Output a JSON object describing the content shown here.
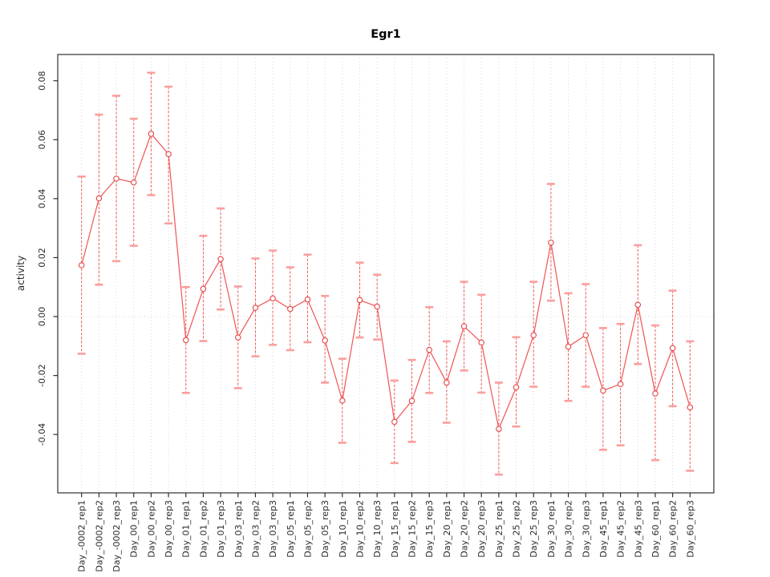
{
  "chart_data": {
    "type": "line",
    "title": "Egr1",
    "xlabel": "",
    "ylabel": "activity",
    "legend": "none",
    "grid": {
      "vertical": "dotted line at each category",
      "horizontal": "dotted line at y=0 only"
    },
    "error_bars": true,
    "marker": "open-circle",
    "categories": [
      "Day_-0002_rep1",
      "Day_-0002_rep2",
      "Day_-0002_rep3",
      "Day_00_rep1",
      "Day_00_rep2",
      "Day_00_rep3",
      "Day_01_rep1",
      "Day_01_rep2",
      "Day_01_rep3",
      "Day_03_rep1",
      "Day_03_rep2",
      "Day_03_rep3",
      "Day_05_rep1",
      "Day_05_rep2",
      "Day_05_rep3",
      "Day_10_rep1",
      "Day_10_rep2",
      "Day_10_rep3",
      "Day_15_rep1",
      "Day_15_rep2",
      "Day_15_rep3",
      "Day_20_rep1",
      "Day_20_rep2",
      "Day_20_rep3",
      "Day_25_rep1",
      "Day_25_rep2",
      "Day_25_rep3",
      "Day_30_rep1",
      "Day_30_rep2",
      "Day_30_rep3",
      "Day_45_rep1",
      "Day_45_rep2",
      "Day_45_rep3",
      "Day_60_rep1",
      "Day_60_rep2",
      "Day_60_rep3"
    ],
    "series": [
      {
        "name": "activity",
        "values": [
          0.0174,
          0.0401,
          0.0468,
          0.0455,
          0.062,
          0.0551,
          -0.008,
          0.0094,
          0.0195,
          -0.0071,
          0.003,
          0.0062,
          0.0026,
          0.0058,
          -0.0081,
          -0.0285,
          0.0056,
          0.0034,
          -0.0357,
          -0.0286,
          -0.0113,
          -0.0224,
          -0.0033,
          -0.0088,
          -0.0381,
          -0.024,
          -0.0063,
          0.0251,
          -0.0102,
          -0.0063,
          -0.0251,
          -0.0229,
          0.004,
          -0.0261,
          -0.0107,
          -0.0308
        ],
        "err_high": [
          0.0475,
          0.0685,
          0.0749,
          0.0671,
          0.0827,
          0.078,
          0.01,
          0.0274,
          0.0367,
          0.0102,
          0.0197,
          0.0224,
          0.0167,
          0.021,
          0.007,
          -0.0143,
          0.0183,
          0.0142,
          -0.0217,
          -0.0147,
          0.0032,
          -0.0084,
          0.0118,
          0.0074,
          -0.0224,
          -0.007,
          0.0118,
          0.045,
          0.0079,
          0.011,
          -0.0039,
          -0.0025,
          0.0242,
          -0.003,
          0.0088,
          -0.0084
        ],
        "err_low": [
          -0.0126,
          0.0108,
          0.0188,
          0.024,
          0.0412,
          0.0316,
          -0.0259,
          -0.0083,
          0.0024,
          -0.0243,
          -0.0135,
          -0.0096,
          -0.0114,
          -0.0087,
          -0.0224,
          -0.0428,
          -0.0071,
          -0.0078,
          -0.0497,
          -0.0425,
          -0.0259,
          -0.036,
          -0.0183,
          -0.0258,
          -0.0536,
          -0.0373,
          -0.0238,
          0.0054,
          -0.0286,
          -0.0238,
          -0.0452,
          -0.0437,
          -0.0161,
          -0.0487,
          -0.0304,
          -0.0523
        ]
      }
    ],
    "yticks": [
      {
        "label": "0.08",
        "value": 0.08
      },
      {
        "label": "0.06",
        "value": 0.06
      },
      {
        "label": "0.04",
        "value": 0.04
      },
      {
        "label": "0.02",
        "value": 0.02
      },
      {
        "label": "0.00",
        "value": 0.0
      },
      {
        "label": "-0.02",
        "value": -0.02
      },
      {
        "label": "-0.04",
        "value": -0.04
      }
    ],
    "ylim": [
      -0.0598,
      0.0889
    ],
    "colors": {
      "series_line": "#f25252",
      "point": "#e64545",
      "error_bar": "#ef5a5a",
      "error_cap": "#fb9e9e",
      "grid": "#d8d8d8",
      "axis": "#2e2e2e",
      "text": "#2b2b2b",
      "title": "#000000",
      "background": "#ffffff"
    }
  }
}
